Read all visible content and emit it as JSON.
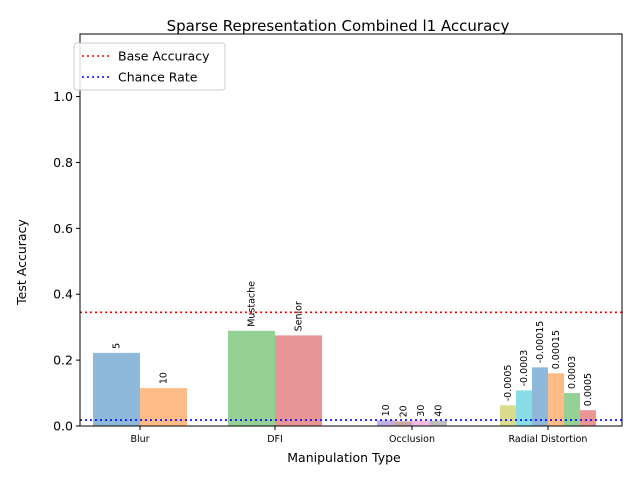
{
  "chart_data": {
    "type": "bar",
    "title": "Sparse Representation Combined l1 Accuracy",
    "xlabel": "Manipulation Type",
    "ylabel": "Test Accuracy",
    "ylim": [
      0,
      1.19
    ],
    "yticks": [
      0.0,
      0.2,
      0.4,
      0.6,
      0.8,
      1.0
    ],
    "grid": false,
    "legend_placement": "top-left",
    "groups": [
      {
        "category": "Blur",
        "bars": [
          {
            "label": "5",
            "value": 0.222,
            "color": "#8fb9da"
          },
          {
            "label": "10",
            "value": 0.115,
            "color": "#ffbb85"
          }
        ]
      },
      {
        "category": "DFI",
        "bars": [
          {
            "label": "Mustache",
            "value": 0.289,
            "color": "#95d095"
          },
          {
            "label": "Senior",
            "value": 0.275,
            "color": "#e99495"
          }
        ]
      },
      {
        "category": "Occlusion",
        "bars": [
          {
            "label": "10",
            "value": 0.017,
            "color": "#c3aee0"
          },
          {
            "label": "20",
            "value": 0.014,
            "color": "#c9a9a3"
          },
          {
            "label": "30",
            "value": 0.016,
            "color": "#f3b9e2"
          },
          {
            "label": "40",
            "value": 0.016,
            "color": "#bfbfbf"
          }
        ]
      },
      {
        "category": "Radial Distortion",
        "bars": [
          {
            "label": "-0.0005",
            "value": 0.063,
            "color": "#dcdc8e"
          },
          {
            "label": "-0.0003",
            "value": 0.108,
            "color": "#89dde6"
          },
          {
            "label": "-0.00015",
            "value": 0.178,
            "color": "#8fb9da"
          },
          {
            "label": "0.00015",
            "value": 0.16,
            "color": "#ffbb85"
          },
          {
            "label": "0.0003",
            "value": 0.1,
            "color": "#95d095"
          },
          {
            "label": "0.0005",
            "value": 0.048,
            "color": "#e99495"
          }
        ]
      }
    ],
    "reference_lines": [
      {
        "name": "Base Accuracy",
        "value": 0.345,
        "color": "#ff0000",
        "style": "dotted"
      },
      {
        "name": "Chance Rate",
        "value": 0.018,
        "color": "#0000ff",
        "style": "dotted"
      }
    ]
  }
}
